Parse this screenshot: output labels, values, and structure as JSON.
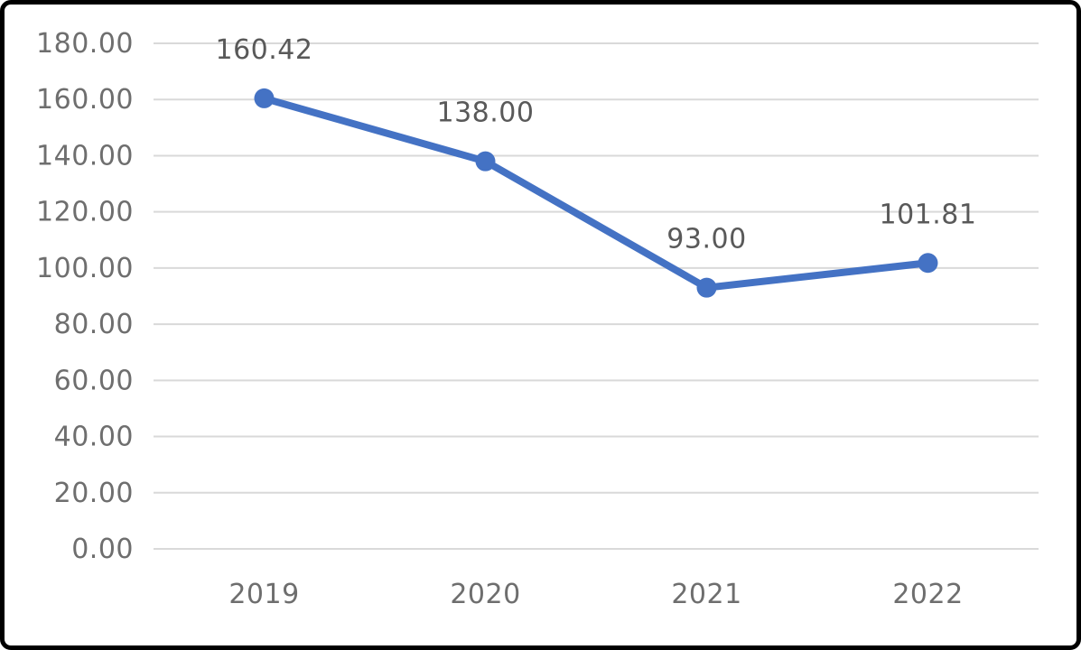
{
  "chart_data": {
    "type": "line",
    "categories": [
      "2019",
      "2020",
      "2021",
      "2022"
    ],
    "series": [
      {
        "values": [
          160.42,
          138.0,
          93.0,
          101.81
        ]
      }
    ],
    "data_labels": [
      "160.42",
      "138.00",
      "93.00",
      "101.81"
    ],
    "y_ticks": [
      "180.00",
      "160.00",
      "140.00",
      "120.00",
      "100.00",
      "80.00",
      "60.00",
      "40.00",
      "20.00",
      "0.00"
    ],
    "ylim": [
      0,
      180
    ],
    "y_tick_step": 20,
    "grid": true,
    "legend": "none",
    "colors": {
      "line": "#4472C4",
      "marker": "#4472C4",
      "grid": "#d9d9d9",
      "tick_text": "#6e6e6e",
      "label_text": "#595959",
      "frame": "#000000",
      "background": "#ffffff"
    }
  }
}
